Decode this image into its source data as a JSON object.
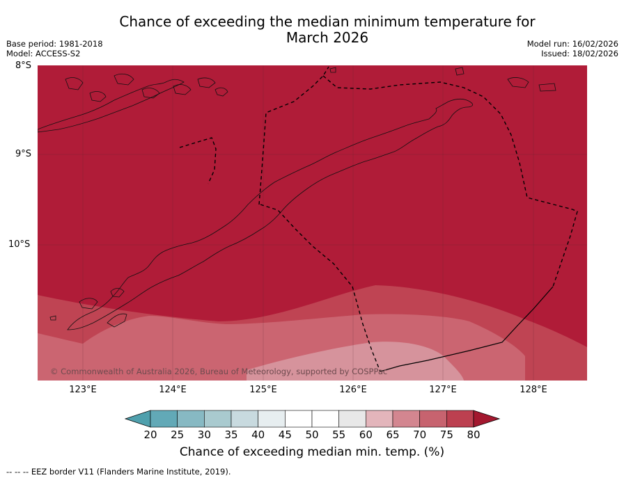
{
  "title_line1": "Chance of exceeding the median minimum temperature for",
  "title_line2": "March 2026",
  "meta_left": {
    "base_period": "Base period: 1981-2018",
    "model": "Model: ACCESS-S2"
  },
  "meta_right": {
    "model_run": "Model run: 16/02/2026",
    "issued": "Issued: 18/02/2026"
  },
  "lat_labels": [
    "8°S",
    "9°S",
    "10°S"
  ],
  "lon_labels": [
    "123°E",
    "124°E",
    "125°E",
    "126°E",
    "127°E",
    "128°E"
  ],
  "copyright": "© Commonwealth of Australia 2026, Bureau of Meteorology, supported by COSPPac",
  "colorbar": {
    "label": "Chance of exceeding median min. temp. (%)",
    "ticks": [
      "20",
      "25",
      "30",
      "35",
      "40",
      "45",
      "50",
      "55",
      "60",
      "65",
      "70",
      "75",
      "80"
    ],
    "under_color": "#4fa0ad",
    "over_color": "#a3182f",
    "colors": [
      "#62a9b7",
      "#87b9c3",
      "#a9cacf",
      "#c8dadf",
      "#e7eef0",
      "#ffffff",
      "#ffffff",
      "#e8e8e8",
      "#e3b5bb",
      "#d38690",
      "#c7636f",
      "#bc4050"
    ]
  },
  "map_colors": {
    "p80plus": "#b01c38",
    "p75_80": "#bf4453",
    "p70_75": "#cb6571",
    "p65_70": "#d6939c"
  },
  "footnote": "-- -- -- EEZ border V11 (Flanders Marine Institute, 2019)."
}
